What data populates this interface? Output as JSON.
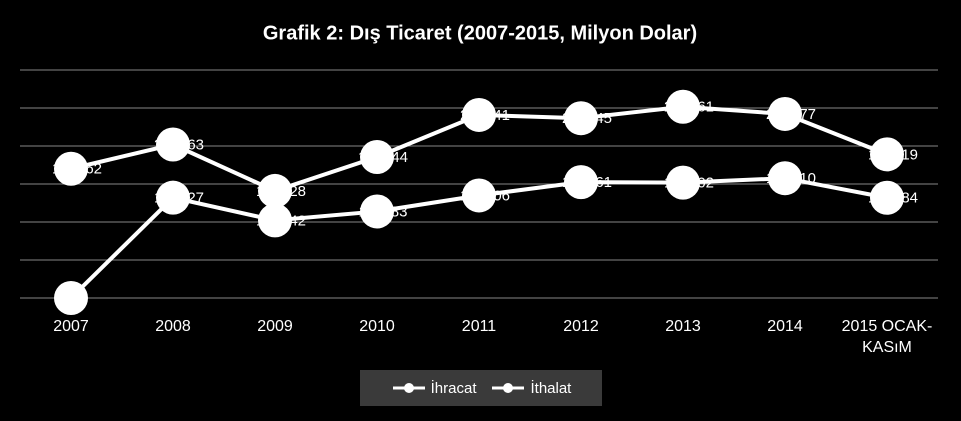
{
  "chart_data": {
    "type": "line",
    "title": "Grafik 2: Dış Ticaret (2007-2015, Milyon Dolar)",
    "categories": [
      "2007",
      "2008",
      "2009",
      "2010",
      "2011",
      "2012",
      "2013",
      "2014",
      "2015 OCAK-KASıM"
    ],
    "series": [
      {
        "name": "İhracat",
        "color": "#ffffff",
        "values": [
          0,
          132027,
          102142,
          113883,
          134906,
          152461,
          151802,
          157610,
          131884
        ]
      },
      {
        "name": "İthalat",
        "color": "#ffffff",
        "values": [
          170062,
          201963,
          140928,
          185544,
          240841,
          236545,
          251661,
          242177,
          189019
        ]
      }
    ],
    "ylim": [
      0,
      300000
    ],
    "yticks": [
      0,
      50000,
      100000,
      150000,
      200000,
      250000,
      300000
    ],
    "grid": true
  }
}
